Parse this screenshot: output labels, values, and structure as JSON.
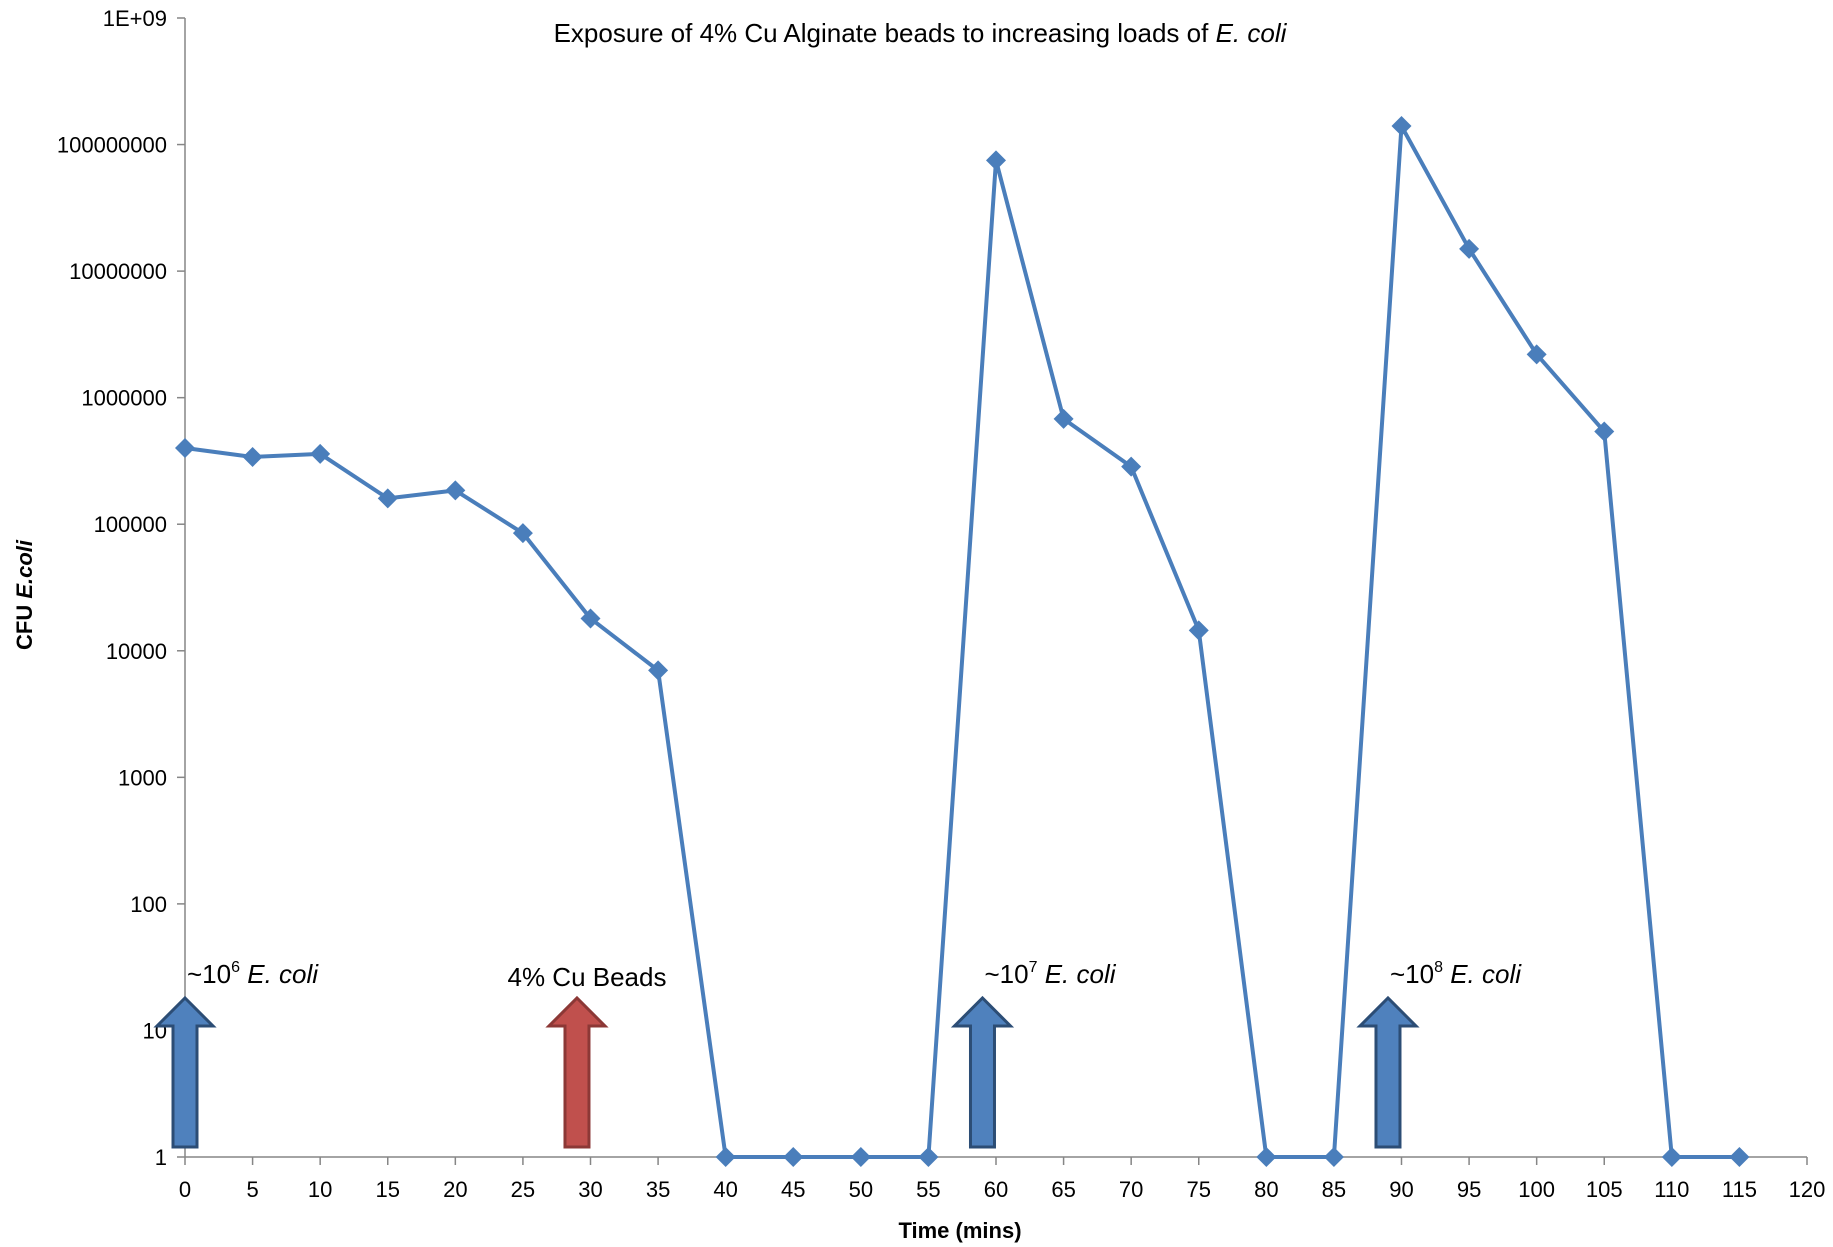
{
  "chart_data": {
    "type": "line",
    "title": {
      "text": "Exposure of 4% Cu Alginate beads to increasing loads of ",
      "italic": "E. coli"
    },
    "xlabel": "Time (mins)",
    "ylabel": {
      "text": "CFU ",
      "italic": "E.coli"
    },
    "xlim": [
      0,
      120
    ],
    "ylim": [
      1,
      1000000000
    ],
    "yscale": "log",
    "grid": false,
    "legend": "none",
    "x_ticks": [
      "0",
      "5",
      "10",
      "15",
      "20",
      "25",
      "30",
      "35",
      "40",
      "45",
      "50",
      "55",
      "60",
      "65",
      "70",
      "75",
      "80",
      "85",
      "90",
      "95",
      "100",
      "105",
      "110",
      "115",
      "120"
    ],
    "y_ticks": [
      {
        "value": 1,
        "label": "1"
      },
      {
        "value": 10,
        "label": "10"
      },
      {
        "value": 100,
        "label": "100"
      },
      {
        "value": 1000,
        "label": "1000"
      },
      {
        "value": 10000,
        "label": "10000"
      },
      {
        "value": 100000,
        "label": "100000"
      },
      {
        "value": 1000000,
        "label": "1000000"
      },
      {
        "value": 10000000,
        "label": "10000000"
      },
      {
        "value": 100000000,
        "label": "100000000"
      },
      {
        "value": 1000000000,
        "label": "1E+09"
      }
    ],
    "series": [
      {
        "color": "#4A7EBB",
        "x": [
          0,
          5,
          10,
          15,
          20,
          25,
          30,
          35,
          40,
          45,
          50,
          55,
          60,
          65,
          70,
          75,
          80,
          85,
          90,
          95,
          100,
          105,
          110,
          115
        ],
        "y": [
          400000,
          340000,
          360000,
          160000,
          185000,
          85000,
          18000,
          7000,
          1,
          1,
          1,
          1,
          75000000,
          680000,
          285000,
          14500,
          1,
          1,
          140000000,
          15000000,
          2200000,
          540000,
          1,
          1
        ]
      }
    ],
    "annotations": [
      {
        "x": 0,
        "color": "#4F81BD",
        "label": "~10",
        "sup": "6",
        "italic": "E. coli"
      },
      {
        "x": 29,
        "color": "#C0504D",
        "label": "4% Cu Beads",
        "sup": "",
        "italic": ""
      },
      {
        "x": 59,
        "color": "#4F81BD",
        "label": "~10",
        "sup": "7",
        "italic": "E. coli"
      },
      {
        "x": 89,
        "color": "#4F81BD",
        "label": "~10",
        "sup": "8",
        "italic": "E. coli"
      }
    ]
  }
}
